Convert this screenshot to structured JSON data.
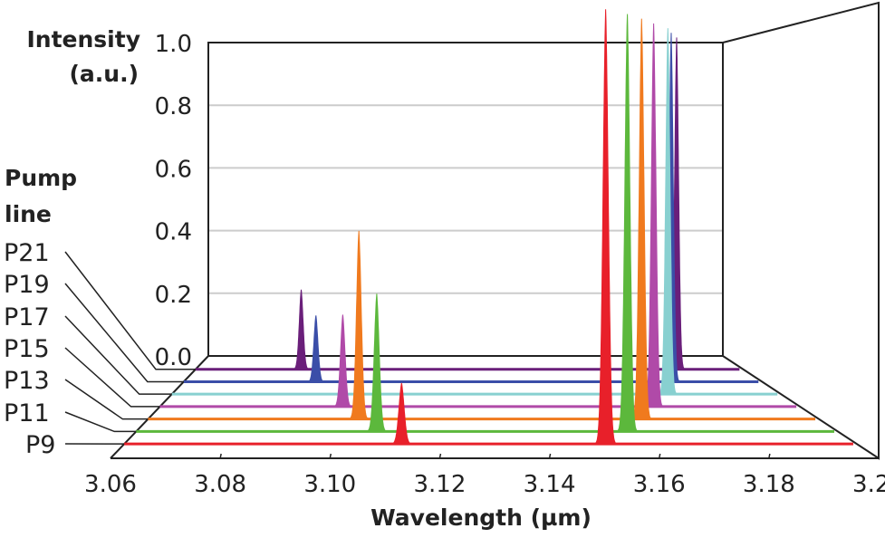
{
  "chart_data": {
    "type": "line",
    "subtype": "3d-waterfall",
    "title": "",
    "xlabel": "Wavelength (µm)",
    "ylabel": [
      "Intensity",
      "(a.u.)"
    ],
    "zlabel": [
      "Pump",
      "line"
    ],
    "xlim": [
      3.06,
      3.2
    ],
    "ylim": [
      0.0,
      1.0
    ],
    "x_ticks": [
      "3.06",
      "3.08",
      "3.10",
      "3.12",
      "3.14",
      "3.16",
      "3.18",
      "3.20"
    ],
    "y_ticks": [
      "0.0",
      "0.2",
      "0.4",
      "0.6",
      "0.8",
      "1.0"
    ],
    "grid": true,
    "series": [
      {
        "name": "P9",
        "color": "#e8202a",
        "peaks": [
          {
            "x": 3.113,
            "y": 0.14
          },
          {
            "x": 3.152,
            "y": 1.0
          }
        ]
      },
      {
        "name": "P11",
        "color": "#5cb83c",
        "peaks": [
          {
            "x": 3.108,
            "y": 0.33
          },
          {
            "x": 3.158,
            "y": 1.0
          }
        ]
      },
      {
        "name": "P13",
        "color": "#f07a1e",
        "peaks": [
          {
            "x": 3.104,
            "y": 0.47
          },
          {
            "x": 3.163,
            "y": 1.0
          }
        ]
      },
      {
        "name": "P15",
        "color": "#b04aa8",
        "peaks": [
          {
            "x": 3.1,
            "y": 0.24
          },
          {
            "x": 3.168,
            "y": 1.0
          }
        ]
      },
      {
        "name": "P17",
        "color": "#88d0d0",
        "peaks": [
          {
            "x": 3.174,
            "y": 1.0
          }
        ]
      },
      {
        "name": "P19",
        "color": "#3b4ea8",
        "peaks": [
          {
            "x": 3.092,
            "y": 0.19
          },
          {
            "x": 3.178,
            "y": 1.0
          }
        ]
      },
      {
        "name": "P21",
        "color": "#6a1f7a",
        "peaks": [
          {
            "x": 3.087,
            "y": 0.24
          },
          {
            "x": 3.183,
            "y": 1.0
          }
        ]
      }
    ]
  }
}
